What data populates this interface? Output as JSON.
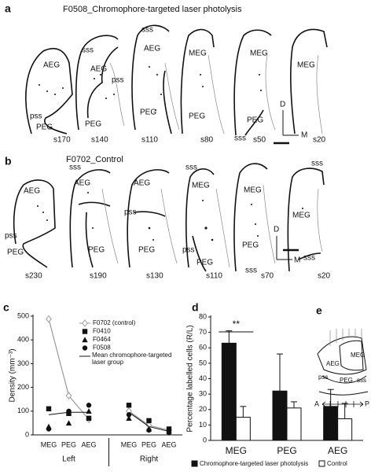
{
  "figure": {
    "panel_a": {
      "label": "a",
      "title": "F0508_Chromophore-targeted laser photolysis",
      "sections": [
        {
          "name": "s170",
          "labels": [
            "AEG",
            "pss",
            "PEG"
          ]
        },
        {
          "name": "s140",
          "labels": [
            "sss",
            "AEG",
            "pss",
            "PEG"
          ]
        },
        {
          "name": "s110",
          "labels": [
            "sss",
            "AEG",
            "PEG"
          ]
        },
        {
          "name": "s80",
          "labels": [
            "MEG",
            "PEG"
          ]
        },
        {
          "name": "s50",
          "labels": [
            "MEG",
            "PEG",
            "sss"
          ]
        },
        {
          "name": "s20",
          "labels": [
            "MEG"
          ]
        }
      ],
      "orientation": [
        "D",
        "M"
      ]
    },
    "panel_b": {
      "label": "b",
      "title": "F0702_Control",
      "sections": [
        {
          "name": "s230",
          "labels": [
            "AEG",
            "pss",
            "PEG"
          ]
        },
        {
          "name": "s190",
          "labels": [
            "sss",
            "AEG",
            "PEG"
          ]
        },
        {
          "name": "s130",
          "labels": [
            "AEG",
            "pss",
            "PEG"
          ]
        },
        {
          "name": "s110",
          "labels": [
            "sss",
            "MEG",
            "pss",
            "PEG"
          ]
        },
        {
          "name": "s70",
          "labels": [
            "MEG",
            "PEG",
            "sss"
          ]
        },
        {
          "name": "s20",
          "labels": [
            "sss",
            "MEG",
            "sss"
          ]
        }
      ],
      "orientation": [
        "D",
        "M"
      ]
    },
    "panel_e": {
      "label": "e",
      "labels": [
        "MEG",
        "AEG",
        "pss",
        "PEG",
        "sss"
      ],
      "axis": [
        "A",
        "P"
      ]
    }
  },
  "chart_data": [
    {
      "type": "line",
      "panel_label": "c",
      "y_label": "Density (mm⁻³)",
      "categories": [
        "MEG",
        "PEG",
        "AEG",
        null,
        "MEG",
        "PEG",
        "AEG"
      ],
      "groups": [
        "Left",
        "Right"
      ],
      "ylim": [
        0,
        500
      ],
      "yticks": [
        0,
        100,
        200,
        300,
        400,
        500
      ],
      "series": [
        {
          "name": "F0702 (control)",
          "color": "#999999",
          "marker": "diamond",
          "line": true,
          "values": [
            488,
            165,
            65,
            null,
            100,
            40,
            20
          ]
        },
        {
          "name": "F0410",
          "color": "#111111",
          "marker": "square",
          "line": false,
          "values": [
            110,
            90,
            70,
            null,
            125,
            60,
            25
          ]
        },
        {
          "name": "F0464",
          "color": "#111111",
          "marker": "triangle",
          "line": false,
          "values": [
            35,
            50,
            100,
            null,
            70,
            25,
            15
          ]
        },
        {
          "name": "F0508",
          "color": "#111111",
          "marker": "circle",
          "line": false,
          "values": [
            25,
            100,
            125,
            null,
            85,
            20,
            10
          ]
        },
        {
          "name": "Mean chromophore-targeted laser group",
          "color": "#111111",
          "line": true,
          "values": [
            85,
            95,
            95,
            null,
            95,
            35,
            15
          ]
        }
      ]
    },
    {
      "type": "bar",
      "panel_label": "d",
      "y_label": "Percentage labelled cells (R/L)",
      "categories": [
        "MEG",
        "PEG",
        "AEG"
      ],
      "ylim": [
        0,
        80
      ],
      "yticks": [
        0,
        10,
        20,
        30,
        40,
        50,
        60,
        70,
        80
      ],
      "annotation": "**",
      "series": [
        {
          "name": "Chromophore-targeted laser photolysis",
          "color": "#111111",
          "values": [
            63,
            32,
            22
          ],
          "errors": [
            8,
            24,
            11
          ]
        },
        {
          "name": "Control",
          "color": "#ffffff",
          "values": [
            15,
            21,
            14
          ],
          "errors": [
            7,
            4,
            10
          ]
        }
      ]
    }
  ]
}
